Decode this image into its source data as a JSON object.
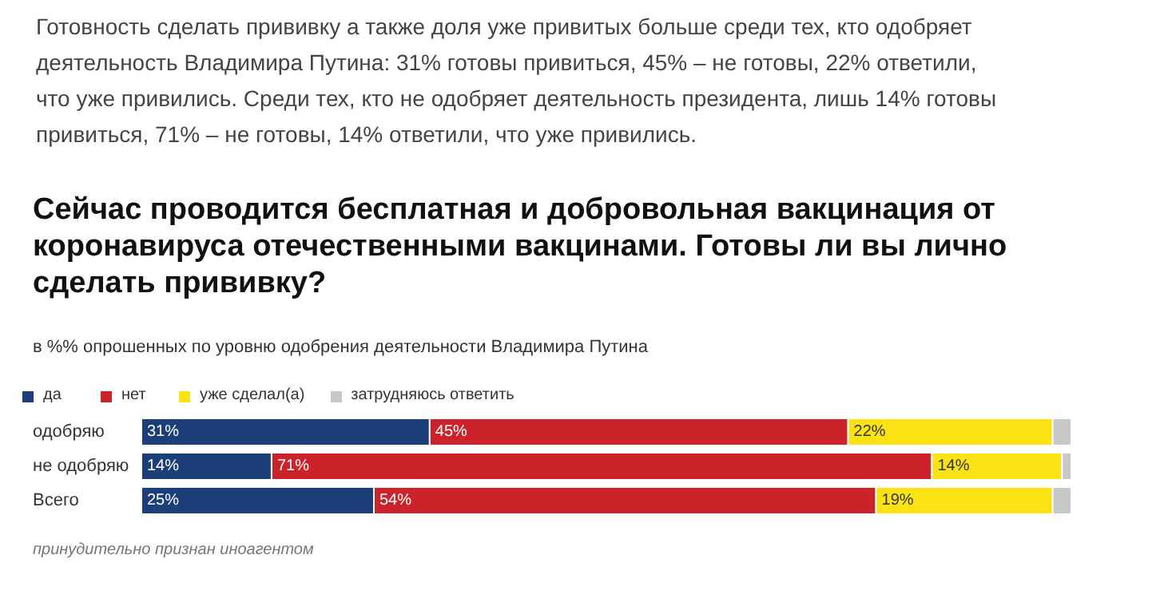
{
  "chart_data": {
    "type": "bar",
    "orientation": "horizontal",
    "stacked": true,
    "title": "Сейчас проводится бесплатная и добровольная вакцинация от коронавируса отечественными вакцинами. Готовы ли вы лично сделать прививку?",
    "subtitle": "в %% опрошенных по уровню одобрения деятельности Владимира Путина",
    "categories": [
      "одобряю",
      "не одобряю",
      "Всего"
    ],
    "series": [
      {
        "name": "да",
        "color": "#1c3f7a",
        "values": [
          31,
          14,
          25
        ],
        "value_labels": [
          "31%",
          "14%",
          "25%"
        ]
      },
      {
        "name": "нет",
        "color": "#cc2229",
        "values": [
          45,
          71,
          54
        ],
        "value_labels": [
          "45%",
          "71%",
          "54%"
        ]
      },
      {
        "name": "уже сделал(а)",
        "color": "#fbe214",
        "values": [
          22,
          14,
          19
        ],
        "value_labels": [
          "22%",
          "14%",
          "19%"
        ]
      },
      {
        "name": "затрудняюсь ответить",
        "color": "#c8c8c8",
        "values": [
          2,
          1,
          2
        ],
        "value_labels": [
          null,
          null,
          null
        ]
      }
    ],
    "legend": "top left",
    "grid": false,
    "annotations": [
      "Готовность сделать прививку а также доля уже привитых больше среди тех, кто одобряет деятельность Владимира Путина: 31% готовы привиться, 45% – не готовы, 22% ответили, что уже привились. Среди тех, кто не одобряет деятельность президента, лишь 14% готовы привиться, 71% – не готовы, 14% ответили, что уже привились.",
      "принудительно признан иноагентом"
    ]
  }
}
